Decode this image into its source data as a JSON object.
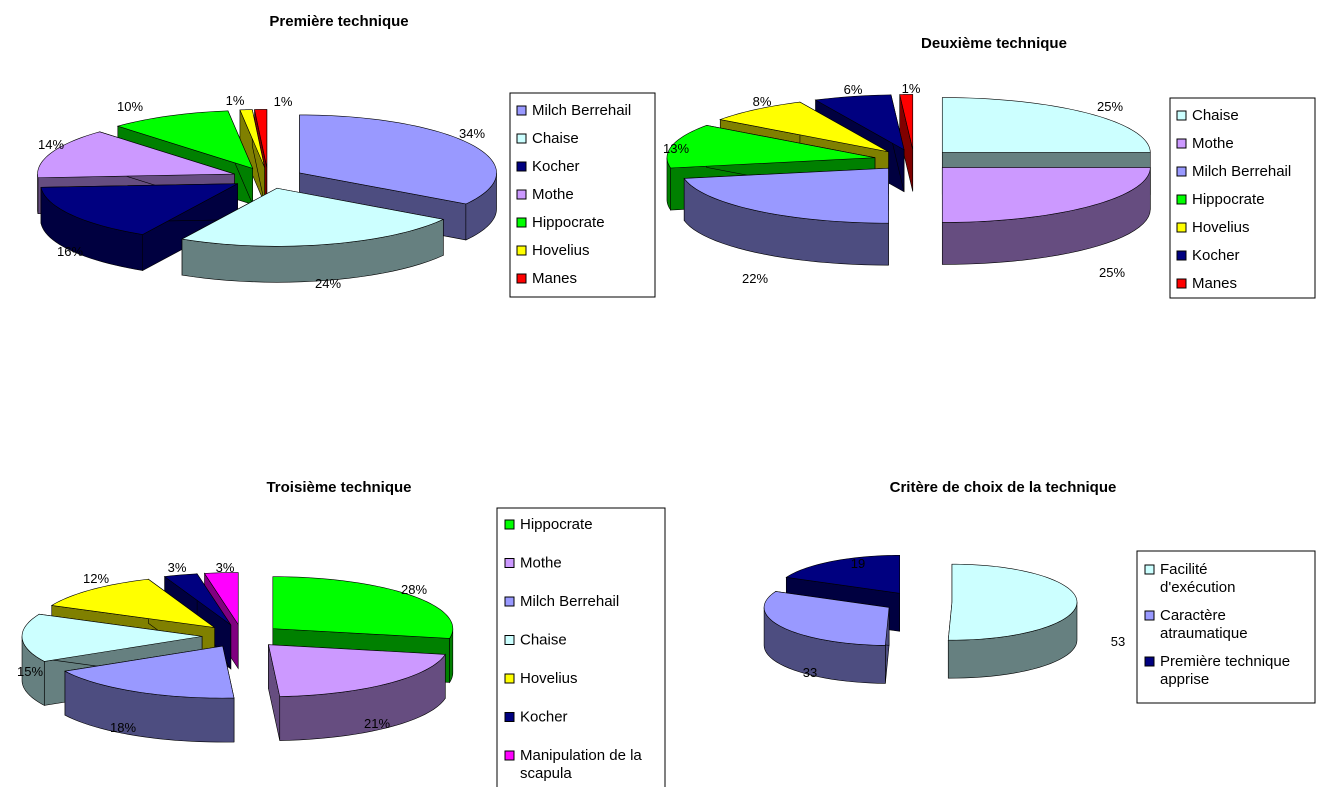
{
  "chart_data": [
    {
      "type": "pie",
      "title": "Première technique",
      "slices": [
        {
          "label": "Milch Berrehail",
          "value": 34,
          "display": "34%",
          "color": "#9999FF"
        },
        {
          "label": "Chaise",
          "value": 24,
          "display": "24%",
          "color": "#CCFFFF"
        },
        {
          "label": "Kocher",
          "value": 16,
          "display": "16%",
          "color": "#000080"
        },
        {
          "label": "Mothe",
          "value": 14,
          "display": "14%",
          "color": "#CC99FF"
        },
        {
          "label": "Hippocrate",
          "value": 10,
          "display": "10%",
          "color": "#00FF00"
        },
        {
          "label": "Hovelius",
          "value": 1,
          "display": "1%",
          "color": "#FFFF00"
        },
        {
          "label": "Manes",
          "value": 1,
          "display": "1%",
          "color": "#FF0000"
        }
      ],
      "legend": [
        "Milch Berrehail",
        "Chaise",
        "Kocher",
        "Mothe",
        "Hippocrate",
        "Hovelius",
        "Manes"
      ],
      "legend_position": "right"
    },
    {
      "type": "pie",
      "title": "Deuxième technique",
      "slices": [
        {
          "label": "Chaise",
          "value": 25,
          "display": "25%",
          "color": "#CCFFFF"
        },
        {
          "label": "Mothe",
          "value": 25,
          "display": "25%",
          "color": "#CC99FF"
        },
        {
          "label": "Milch Berrehail",
          "value": 22,
          "display": "22%",
          "color": "#9999FF"
        },
        {
          "label": "Hippocrate",
          "value": 13,
          "display": "13%",
          "color": "#00FF00"
        },
        {
          "label": "Hovelius",
          "value": 8,
          "display": "8%",
          "color": "#FFFF00"
        },
        {
          "label": "Kocher",
          "value": 6,
          "display": "6%",
          "color": "#000080"
        },
        {
          "label": "Manes",
          "value": 1,
          "display": "1%",
          "color": "#FF0000"
        }
      ],
      "legend": [
        "Chaise",
        "Mothe",
        "Milch Berrehail",
        "Hippocrate",
        "Hovelius",
        "Kocher",
        "Manes"
      ],
      "legend_position": "right"
    },
    {
      "type": "pie",
      "title": "Troisième technique",
      "slices": [
        {
          "label": "Hippocrate",
          "value": 28,
          "display": "28%",
          "color": "#00FF00"
        },
        {
          "label": "Mothe",
          "value": 21,
          "display": "21%",
          "color": "#CC99FF"
        },
        {
          "label": "Milch Berrehail",
          "value": 18,
          "display": "18%",
          "color": "#9999FF"
        },
        {
          "label": "Chaise",
          "value": 15,
          "display": "15%",
          "color": "#CCFFFF"
        },
        {
          "label": "Hovelius",
          "value": 12,
          "display": "12%",
          "color": "#FFFF00"
        },
        {
          "label": "Kocher",
          "value": 3,
          "display": "3%",
          "color": "#000080"
        },
        {
          "label": "Manipulation de la scapula",
          "value": 3,
          "display": "3%",
          "color": "#FF00FF"
        }
      ],
      "legend": [
        "Hippocrate",
        "Mothe",
        "Milch Berrehail",
        "Chaise",
        "Hovelius",
        "Kocher",
        "Manipulation de la scapula"
      ],
      "legend_position": "right"
    },
    {
      "type": "pie",
      "title": "Critère de choix de la technique",
      "slices": [
        {
          "label": "Facilité d'exécution",
          "value": 53,
          "display": "53",
          "color": "#CCFFFF"
        },
        {
          "label": "Caractère atraumatique",
          "value": 33,
          "display": "33",
          "color": "#9999FF"
        },
        {
          "label": "Première technique apprise",
          "value": 19,
          "display": "19",
          "color": "#000080"
        }
      ],
      "legend": [
        "Facilité d'exécution",
        "Caractère atraumatique",
        "Première technique apprise"
      ],
      "legend_position": "right"
    }
  ]
}
